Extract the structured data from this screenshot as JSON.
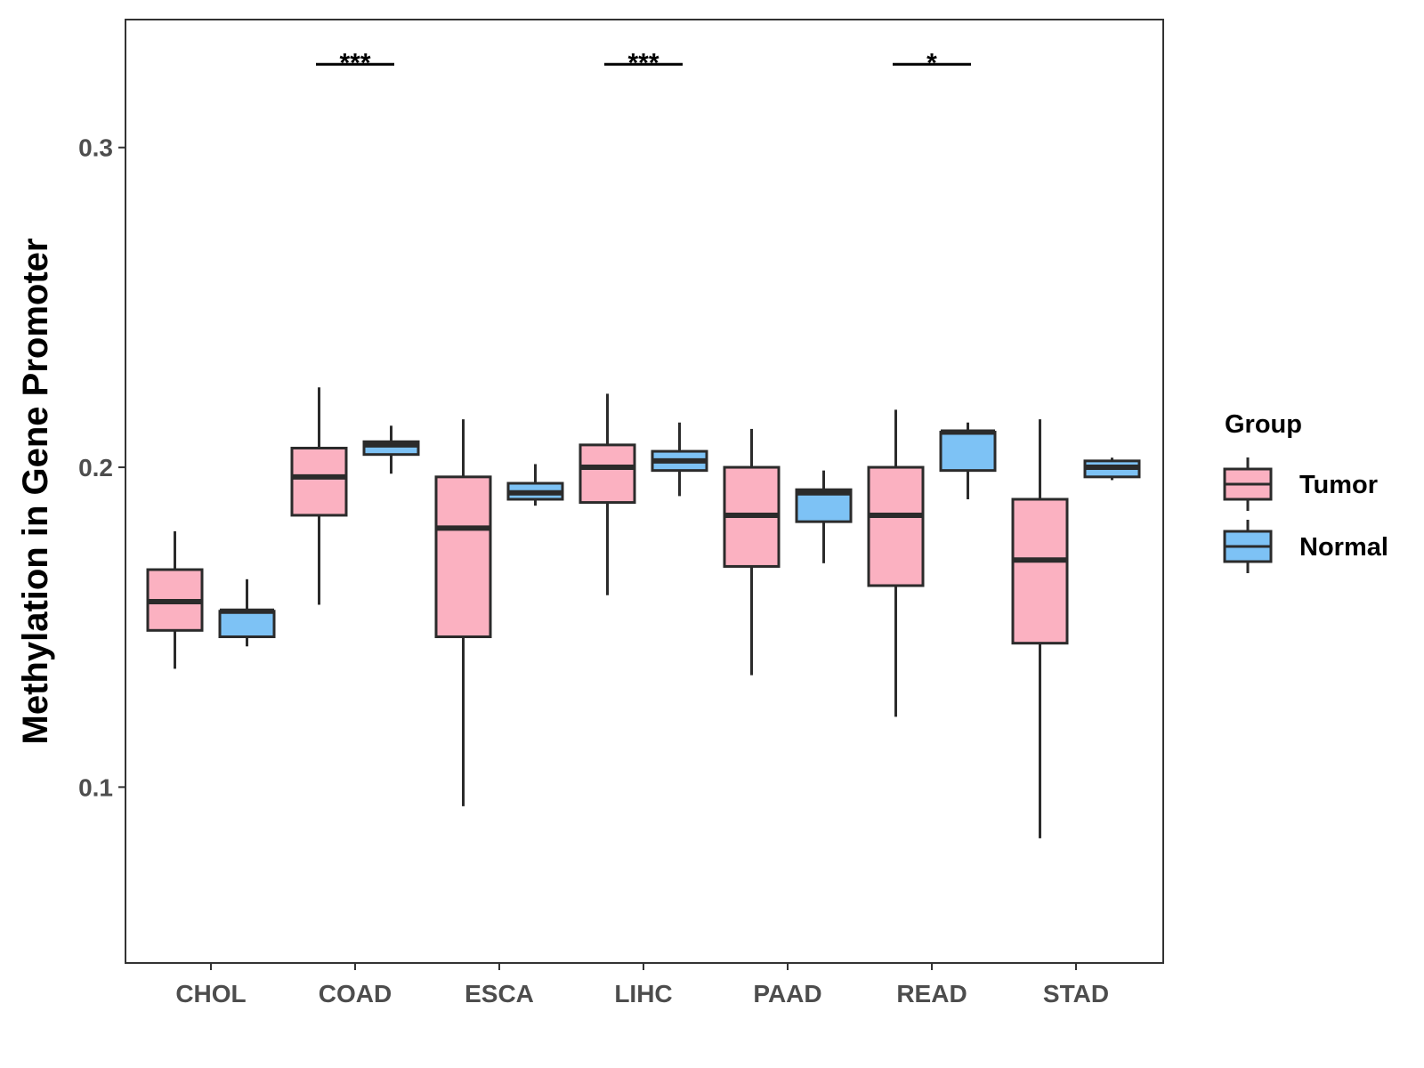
{
  "chart_data": {
    "type": "box",
    "title": "",
    "xlabel": "",
    "ylabel": "Methylation in Gene Promoter",
    "ylim": [
      0.045,
      0.34
    ],
    "yticks": [
      0.1,
      0.2,
      0.3
    ],
    "ytick_labels": [
      "0.1",
      "0.2",
      "0.3"
    ],
    "categories": [
      "CHOL",
      "COAD",
      "ESCA",
      "LIHC",
      "PAAD",
      "READ",
      "STAD"
    ],
    "legend": {
      "title": "Group",
      "position": "right",
      "entries": [
        "Tumor",
        "Normal"
      ]
    },
    "colors": {
      "Tumor": "#fbb1c1",
      "Normal": "#7dc2f5",
      "outline": "#2b2b2b",
      "panel_border": "#333333"
    },
    "series": [
      {
        "name": "Tumor",
        "boxes": [
          {
            "category": "CHOL",
            "whisker_low": 0.137,
            "q1": 0.149,
            "median": 0.158,
            "q3": 0.168,
            "whisker_high": 0.18
          },
          {
            "category": "COAD",
            "whisker_low": 0.157,
            "q1": 0.185,
            "median": 0.197,
            "q3": 0.206,
            "whisker_high": 0.225
          },
          {
            "category": "ESCA",
            "whisker_low": 0.094,
            "q1": 0.147,
            "median": 0.181,
            "q3": 0.197,
            "whisker_high": 0.215
          },
          {
            "category": "LIHC",
            "whisker_low": 0.16,
            "q1": 0.189,
            "median": 0.2,
            "q3": 0.207,
            "whisker_high": 0.223
          },
          {
            "category": "PAAD",
            "whisker_low": 0.135,
            "q1": 0.169,
            "median": 0.185,
            "q3": 0.2,
            "whisker_high": 0.212
          },
          {
            "category": "READ",
            "whisker_low": 0.122,
            "q1": 0.163,
            "median": 0.185,
            "q3": 0.2,
            "whisker_high": 0.218
          },
          {
            "category": "STAD",
            "whisker_low": 0.084,
            "q1": 0.145,
            "median": 0.171,
            "q3": 0.19,
            "whisker_high": 0.215
          }
        ]
      },
      {
        "name": "Normal",
        "boxes": [
          {
            "category": "CHOL",
            "whisker_low": 0.144,
            "q1": 0.147,
            "median": 0.155,
            "q3": 0.155,
            "whisker_high": 0.165
          },
          {
            "category": "COAD",
            "whisker_low": 0.198,
            "q1": 0.204,
            "median": 0.207,
            "q3": 0.208,
            "whisker_high": 0.213
          },
          {
            "category": "ESCA",
            "whisker_low": 0.188,
            "q1": 0.19,
            "median": 0.192,
            "q3": 0.195,
            "whisker_high": 0.201
          },
          {
            "category": "LIHC",
            "whisker_low": 0.191,
            "q1": 0.199,
            "median": 0.202,
            "q3": 0.205,
            "whisker_high": 0.214
          },
          {
            "category": "PAAD",
            "whisker_low": 0.17,
            "q1": 0.183,
            "median": 0.192,
            "q3": 0.193,
            "whisker_high": 0.199
          },
          {
            "category": "READ",
            "whisker_low": 0.19,
            "q1": 0.199,
            "median": 0.211,
            "q3": 0.211,
            "whisker_high": 0.214
          },
          {
            "category": "STAD",
            "whisker_low": 0.196,
            "q1": 0.197,
            "median": 0.2,
            "q3": 0.202,
            "whisker_high": 0.203
          }
        ]
      }
    ],
    "annotations": [
      {
        "category": "COAD",
        "label": "***",
        "y": 0.326
      },
      {
        "category": "LIHC",
        "label": "***",
        "y": 0.326
      },
      {
        "category": "READ",
        "label": "*",
        "y": 0.326
      }
    ]
  }
}
